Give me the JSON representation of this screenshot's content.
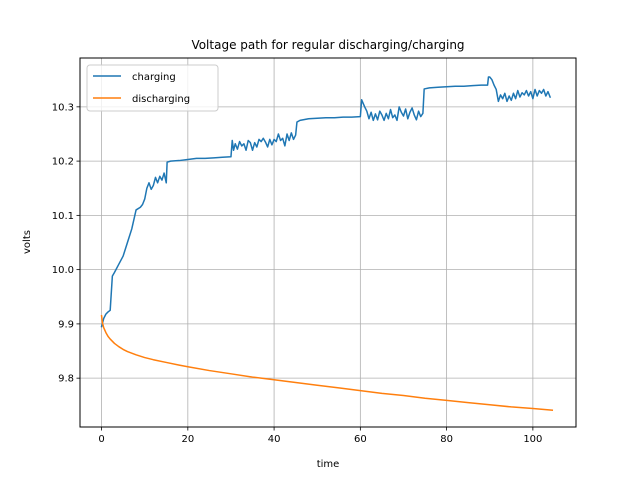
{
  "chart_data": {
    "type": "line",
    "title": "Voltage path for regular discharging/charging",
    "xlabel": "time",
    "ylabel": "volts",
    "xlim": [
      -5,
      110
    ],
    "ylim": [
      9.71,
      10.39
    ],
    "xticks": [
      0,
      20,
      40,
      60,
      80,
      100
    ],
    "xtick_labels": [
      "0",
      "20",
      "40",
      "60",
      "80",
      "100"
    ],
    "yticks": [
      9.8,
      9.9,
      10.0,
      10.1,
      10.2,
      10.3
    ],
    "ytick_labels": [
      "9.8",
      "9.9",
      "10.0",
      "10.1",
      "10.2",
      "10.3"
    ],
    "grid": true,
    "legend": "upper-left",
    "series": [
      {
        "name": "charging",
        "color": "#1f77b4",
        "x": [
          0,
          0.5,
          1,
          1.5,
          2,
          2.5,
          3,
          4,
          5,
          6,
          7,
          8,
          9,
          9.5,
          10,
          10.5,
          11,
          11.5,
          12,
          12.5,
          13,
          13.5,
          14,
          14.5,
          15,
          15.2,
          16,
          18,
          20,
          22,
          24,
          26,
          28,
          30,
          30.3,
          30.6,
          31,
          31.5,
          32,
          32.5,
          33,
          33.5,
          34,
          34.5,
          35,
          35.5,
          36,
          36.5,
          37,
          37.5,
          38,
          38.5,
          39,
          39.5,
          40,
          40.5,
          41,
          41.5,
          42,
          42.5,
          43,
          43.5,
          44,
          44.5,
          45,
          45.3,
          46,
          48,
          50,
          52,
          54,
          56,
          58,
          60,
          60.3,
          61,
          61.5,
          62,
          62.5,
          63,
          63.5,
          64,
          64.5,
          65,
          65.5,
          66,
          66.5,
          67,
          67.5,
          68,
          68.5,
          69,
          69.5,
          70,
          70.5,
          71,
          71.5,
          72,
          72.5,
          73,
          73.5,
          74,
          74.5,
          74.8,
          76,
          78,
          80,
          82,
          84,
          86,
          88,
          89.5,
          89.7,
          90,
          90.5,
          91,
          91.5,
          92,
          92.5,
          93,
          93.5,
          94,
          94.5,
          95,
          95.5,
          96,
          96.5,
          97,
          97.5,
          98,
          98.5,
          99,
          99.5,
          100,
          100.5,
          101,
          101.5,
          102,
          102.5,
          103,
          103.5,
          104
        ],
        "y": [
          9.895,
          9.91,
          9.918,
          9.922,
          9.925,
          9.988,
          9.995,
          10.01,
          10.025,
          10.05,
          10.075,
          10.11,
          10.115,
          10.12,
          10.13,
          10.15,
          10.16,
          10.148,
          10.155,
          10.17,
          10.16,
          10.172,
          10.165,
          10.178,
          10.16,
          10.198,
          10.2,
          10.201,
          10.203,
          10.205,
          10.205,
          10.206,
          10.207,
          10.208,
          10.238,
          10.22,
          10.232,
          10.222,
          10.236,
          10.228,
          10.232,
          10.22,
          10.238,
          10.234,
          10.22,
          10.234,
          10.226,
          10.24,
          10.236,
          10.242,
          10.235,
          10.226,
          10.24,
          10.23,
          10.24,
          10.236,
          10.25,
          10.238,
          10.242,
          10.228,
          10.25,
          10.238,
          10.252,
          10.24,
          10.248,
          10.272,
          10.275,
          10.278,
          10.279,
          10.28,
          10.28,
          10.281,
          10.281,
          10.282,
          10.313,
          10.3,
          10.292,
          10.278,
          10.29,
          10.275,
          10.287,
          10.276,
          10.292,
          10.285,
          10.275,
          10.288,
          10.278,
          10.295,
          10.28,
          10.285,
          10.275,
          10.3,
          10.29,
          10.283,
          10.296,
          10.278,
          10.29,
          10.298,
          10.285,
          10.276,
          10.292,
          10.282,
          10.288,
          10.333,
          10.335,
          10.336,
          10.337,
          10.338,
          10.338,
          10.339,
          10.34,
          10.34,
          10.355,
          10.355,
          10.35,
          10.34,
          10.332,
          10.31,
          10.322,
          10.315,
          10.325,
          10.31,
          10.32,
          10.312,
          10.325,
          10.315,
          10.33,
          10.318,
          10.326,
          10.322,
          10.33,
          10.32,
          10.328,
          10.315,
          10.332,
          10.32,
          10.33,
          10.325,
          10.332,
          10.32,
          10.328,
          10.318
        ]
      },
      {
        "name": "discharging",
        "color": "#ff7f0e",
        "x": [
          0,
          0.2,
          0.5,
          1,
          1.5,
          2,
          3,
          4,
          5,
          6,
          7,
          8,
          10,
          12,
          15,
          18,
          20,
          25,
          30,
          35,
          40,
          45,
          50,
          55,
          60,
          65,
          70,
          75,
          80,
          85,
          90,
          95,
          100,
          104.5
        ],
        "y": [
          9.915,
          9.902,
          9.893,
          9.884,
          9.877,
          9.872,
          9.864,
          9.858,
          9.853,
          9.849,
          9.846,
          9.843,
          9.838,
          9.834,
          9.829,
          9.824,
          9.821,
          9.814,
          9.808,
          9.802,
          9.797,
          9.792,
          9.787,
          9.782,
          9.777,
          9.772,
          9.768,
          9.763,
          9.759,
          9.755,
          9.751,
          9.747,
          9.744,
          9.741
        ]
      }
    ]
  }
}
